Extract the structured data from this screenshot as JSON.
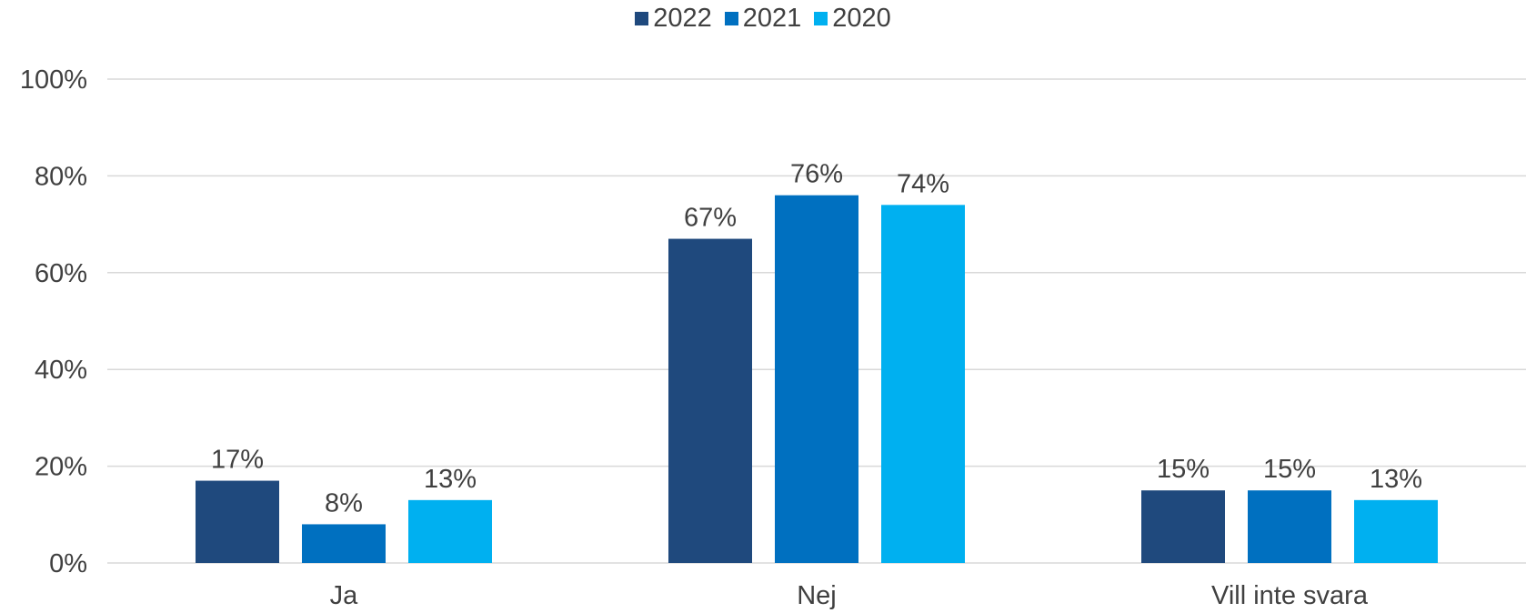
{
  "chart_data": {
    "type": "bar",
    "categories": [
      "Ja",
      "Nej",
      "Vill inte svara"
    ],
    "series": [
      {
        "name": "2022",
        "color": "#1F497D",
        "values": [
          17,
          67,
          15
        ],
        "labels": [
          "17%",
          "67%",
          "15%"
        ]
      },
      {
        "name": "2021",
        "color": "#0070C0",
        "values": [
          8,
          76,
          15
        ],
        "labels": [
          "8%",
          "76%",
          "15%"
        ]
      },
      {
        "name": "2020",
        "color": "#00B0F0",
        "values": [
          13,
          74,
          13
        ],
        "labels": [
          "13%",
          "74%",
          "13%"
        ]
      }
    ],
    "ylim": [
      0,
      100
    ],
    "yticks": [
      0,
      20,
      40,
      60,
      80,
      100
    ],
    "ytick_labels": [
      "0%",
      "20%",
      "40%",
      "60%",
      "80%",
      "100%"
    ],
    "legend_position": "top",
    "grid": true
  }
}
